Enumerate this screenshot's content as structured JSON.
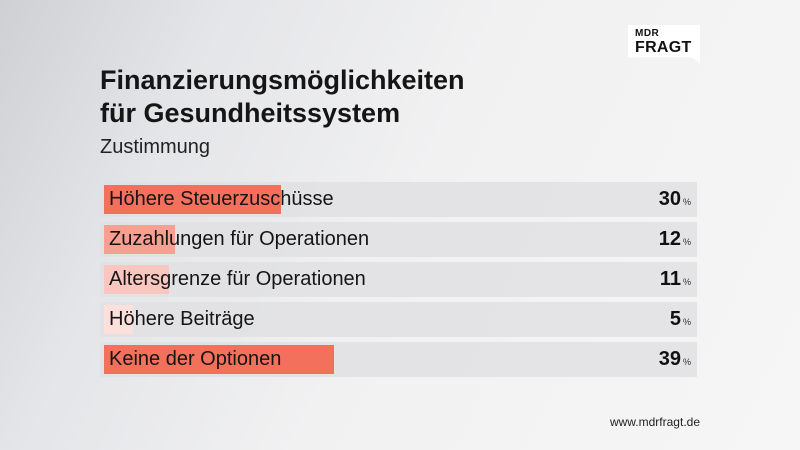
{
  "logo": {
    "top": "MDR",
    "bottom": "FRAGT"
  },
  "title_line1": "Finanzierungsmöglichkeiten",
  "title_line2": "für Gesundheitssystem",
  "subtitle": "Zustimmung",
  "footer": "www.mdrfragt.de",
  "colors": {
    "strong": "#f2705c",
    "medium": "#f7a092",
    "light": "#f9c7c0",
    "pale": "#fbe0dc",
    "row_background": "#e1e1e3"
  },
  "chart_data": {
    "type": "bar",
    "orientation": "horizontal",
    "categories": [
      "Höhere Steuerzuschüsse",
      "Zuzahlungen für Operationen",
      "Altersgrenze für Operationen",
      "Höhere Beiträge",
      "Keine der Optionen"
    ],
    "values": [
      30,
      12,
      11,
      5,
      39
    ],
    "unit": "%",
    "xlim": [
      0,
      100
    ],
    "bar_colors": [
      "#f2705c",
      "#f7a092",
      "#f9c7c0",
      "#fbe0dc",
      "#f2705c"
    ]
  }
}
